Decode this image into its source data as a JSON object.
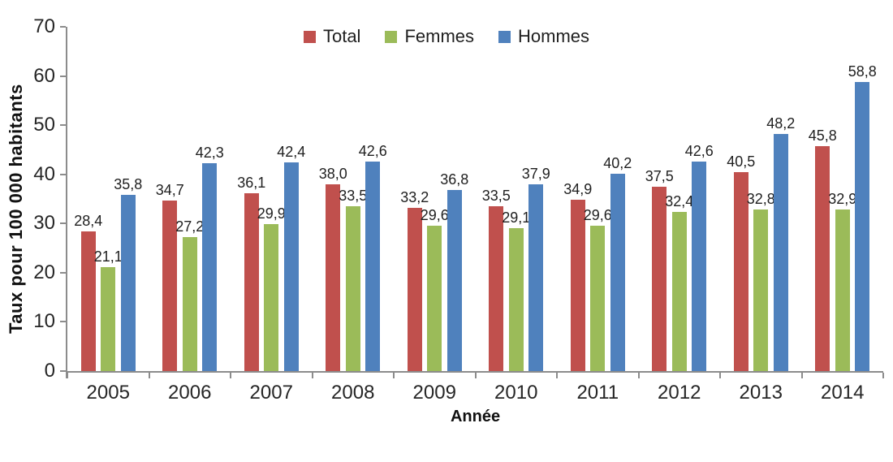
{
  "chart_data": {
    "type": "bar",
    "title": "",
    "categories": [
      "2005",
      "2006",
      "2007",
      "2008",
      "2009",
      "2010",
      "2011",
      "2012",
      "2013",
      "2014"
    ],
    "series": [
      {
        "name": "Total",
        "color": "#C0504D",
        "values": [
          28.4,
          34.7,
          36.1,
          38.0,
          33.2,
          33.5,
          34.9,
          37.5,
          40.5,
          45.8
        ],
        "labels": [
          "28,4",
          "34,7",
          "36,1",
          "38,0",
          "33,2",
          "33,5",
          "34,9",
          "37,5",
          "40,5",
          "45,8"
        ]
      },
      {
        "name": "Femmes",
        "color": "#9BBB59",
        "values": [
          21.1,
          27.2,
          29.9,
          33.5,
          29.6,
          29.1,
          29.6,
          32.4,
          32.8,
          32.9
        ],
        "labels": [
          "21,1",
          "27,2",
          "29,9",
          "33,5",
          "29,6",
          "29,1",
          "29,6",
          "32,4",
          "32,8",
          "32,9"
        ]
      },
      {
        "name": "Hommes",
        "color": "#4F81BD",
        "values": [
          35.8,
          42.3,
          42.4,
          42.6,
          36.8,
          37.9,
          40.2,
          42.6,
          48.2,
          58.8
        ],
        "labels": [
          "35,8",
          "42,3",
          "42,4",
          "42,6",
          "36,8",
          "37,9",
          "40,2",
          "42,6",
          "48,2",
          "58,8"
        ]
      }
    ],
    "xlabel": "Année",
    "ylabel": "Taux pour 100 000 habitants",
    "ylim": [
      0,
      70
    ],
    "yticks": [
      "0",
      "10",
      "20",
      "30",
      "40",
      "50",
      "60",
      "70"
    ],
    "grid": false,
    "legend_position": "top"
  },
  "colors": {
    "axis": "#8C8C8C",
    "text": "#1f1f1f"
  }
}
